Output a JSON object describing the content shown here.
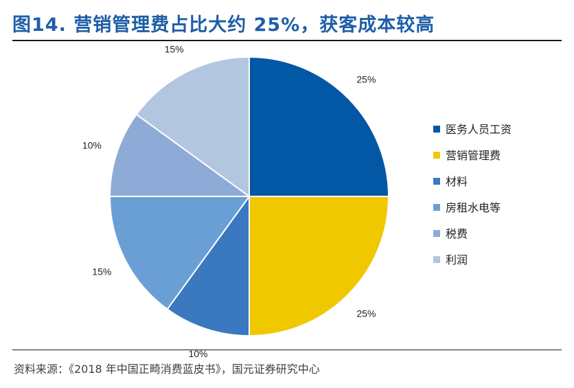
{
  "title": "图14. 营销管理费占比大约 25%，获客成本较高",
  "source": "资料来源：《2018 年中国正畸消费蓝皮书》，国元证券研究中心",
  "chart_data": {
    "type": "pie",
    "slices": [
      {
        "label": "医务人员工资",
        "value": 25,
        "display": "25%",
        "color": "#0358a6"
      },
      {
        "label": "营销管理费",
        "value": 25,
        "display": "25%",
        "color": "#f0c800"
      },
      {
        "label": "材料",
        "value": 10,
        "display": "10%",
        "color": "#3a78c0"
      },
      {
        "label": "房租水电等",
        "value": 15,
        "display": "15%",
        "color": "#6a9fd6"
      },
      {
        "label": "税费",
        "value": 10,
        "display": "10%",
        "color": "#8eaad6"
      },
      {
        "label": "利润",
        "value": 15,
        "display": "15%",
        "color": "#b3c6e0"
      }
    ],
    "legend_position": "right"
  }
}
